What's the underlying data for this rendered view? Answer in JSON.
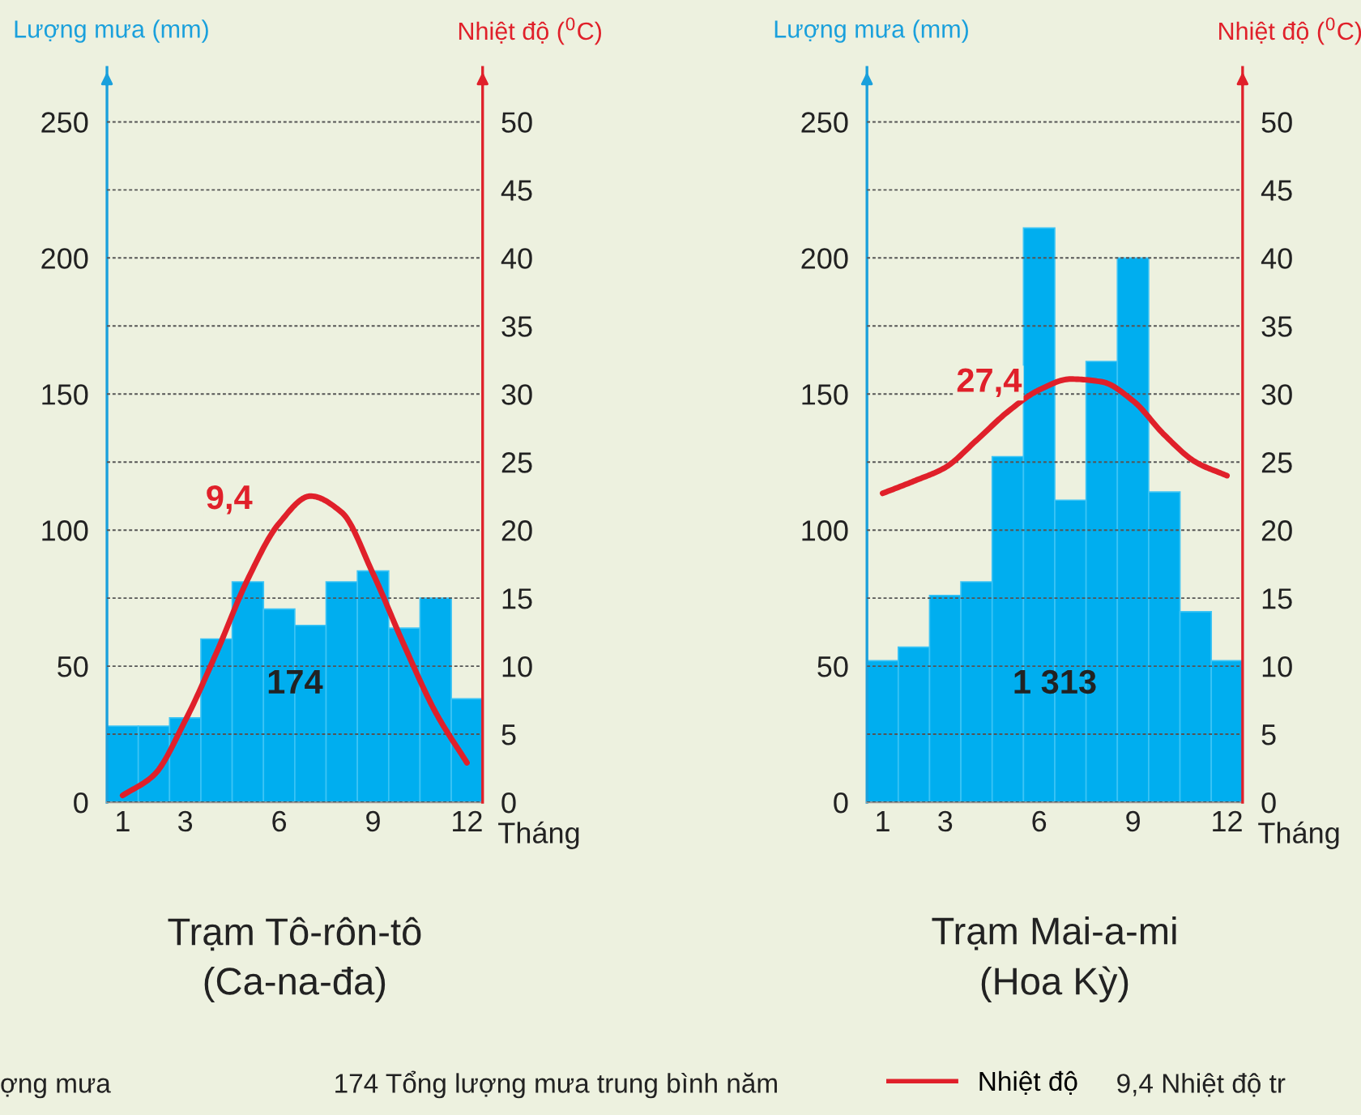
{
  "chart_data": [
    {
      "type": "bar",
      "title": "Trạm Tô-rôn-tô\n(Ca-na-đa)",
      "xlabel": "Tháng",
      "ylabel": "Lượng mưa (mm)",
      "y2label": "Nhiệt độ ($^{0}$C)",
      "x": [
        1,
        2,
        3,
        4,
        5,
        6,
        7,
        8,
        9,
        10,
        11,
        12
      ],
      "xlim": [
        0.5,
        12.5
      ],
      "xticks": [
        1,
        3,
        6,
        9,
        12
      ],
      "ylim": [
        0,
        270
      ],
      "yticks": [
        0,
        50,
        100,
        150,
        200,
        250
      ],
      "y2lim": [
        0,
        54
      ],
      "y2ticks": [
        0,
        5,
        10,
        15,
        20,
        25,
        30,
        35,
        40,
        45,
        50
      ],
      "grid": "y",
      "legend": "bottom",
      "series": [
        {
          "color": "#00aeef",
          "values": [
            28,
            28,
            31,
            60,
            81,
            71,
            65,
            81,
            85,
            64,
            75,
            38
          ]
        },
        {
          "type": "line",
          "name": "Nhiệt độ",
          "axis": "y2",
          "color": "#e0202a",
          "values": [
            0.5,
            2,
            6,
            11,
            16.4,
            20.5,
            22.5,
            21.3,
            16.8,
            11.5,
            6.6,
            2.9
          ]
        }
      ],
      "annotations": [
        "9,4",
        "174",
        "ợng mưa",
        "174 Tổng lượng mưa trung bình năm",
        "9,4 Nhiệt độ tr"
      ]
    },
    {
      "type": "bar",
      "title": "Trạm Mai-a-mi\n(Hoa Kỳ)",
      "xlabel": "Tháng",
      "ylabel": "Lượng mưa (mm)",
      "y2label": "Nhiệt độ ($^{0}$C)",
      "x": [
        1,
        2,
        3,
        4,
        5,
        6,
        7,
        8,
        9,
        10,
        11,
        12
      ],
      "xlim": [
        0.5,
        12.5
      ],
      "xticks": [
        1,
        3,
        6,
        9,
        12
      ],
      "ylim": [
        0,
        270
      ],
      "yticks": [
        0,
        50,
        100,
        150,
        200,
        250
      ],
      "y2lim": [
        0,
        54
      ],
      "y2ticks": [
        0,
        5,
        10,
        15,
        20,
        25,
        30,
        35,
        40,
        45,
        50
      ],
      "grid": "y",
      "series": [
        {
          "color": "#00aeef",
          "values": [
            52,
            57,
            76,
            81,
            127,
            211,
            111,
            162,
            200,
            114,
            70,
            52
          ]
        },
        {
          "type": "line",
          "axis": "y2",
          "color": "#e0202a",
          "values": [
            22.7,
            23.6,
            24.6,
            26.6,
            28.7,
            30.3,
            31.1,
            30.9,
            29.5,
            27,
            25,
            24
          ]
        }
      ],
      "annotations": [
        "27,4",
        "1 313"
      ]
    }
  ]
}
